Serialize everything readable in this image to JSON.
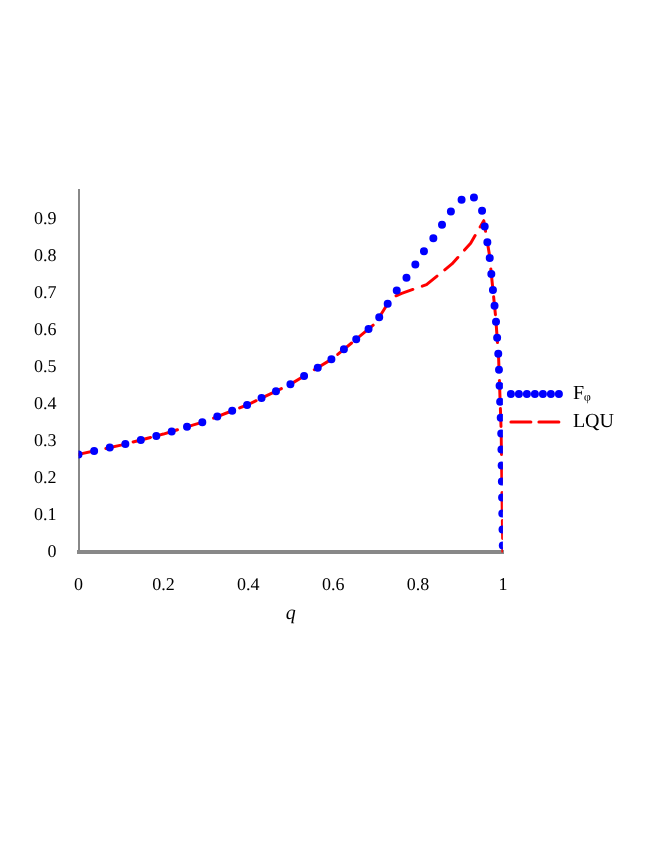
{
  "chart_data": {
    "type": "line",
    "xlabel": "q",
    "xlim": [
      0,
      1
    ],
    "ylim": [
      0,
      0.98
    ],
    "xticks": [
      0,
      0.2,
      0.4,
      0.6,
      0.8,
      1
    ],
    "yticks": [
      0,
      0.1,
      0.2,
      0.3,
      0.4,
      0.5,
      0.6,
      0.7,
      0.8,
      0.9
    ],
    "legend": "right",
    "grid": false,
    "series": [
      {
        "name": "Fᵩ",
        "color": "#0000ff",
        "line_style": "dotted",
        "x": [
          0,
          0.1,
          0.2,
          0.3,
          0.4,
          0.5,
          0.6,
          0.7,
          0.737,
          0.76,
          0.785,
          0.804,
          0.828,
          0.87,
          0.892,
          0.924,
          0.949,
          0.968,
          0.983,
          0.99,
          0.996,
          0.999,
          1
        ],
        "values": [
          0.265,
          0.29,
          0.32,
          0.355,
          0.4,
          0.455,
          0.525,
          0.62,
          0.688,
          0.724,
          0.76,
          0.8,
          0.835,
          0.91,
          0.945,
          0.97,
          0.937,
          0.807,
          0.636,
          0.523,
          0.327,
          0.068,
          0
        ]
      },
      {
        "name": "LQU",
        "color": "#ff0000",
        "line_style": "dashed",
        "x": [
          0,
          0.1,
          0.2,
          0.3,
          0.4,
          0.5,
          0.6,
          0.7,
          0.737,
          0.76,
          0.82,
          0.88,
          0.924,
          0.955,
          0.968,
          0.983,
          0.99,
          0.996,
          0.999,
          1
        ],
        "values": [
          0.265,
          0.29,
          0.32,
          0.355,
          0.4,
          0.455,
          0.525,
          0.62,
          0.688,
          0.7,
          0.724,
          0.78,
          0.836,
          0.897,
          0.807,
          0.636,
          0.523,
          0.327,
          0.068,
          0
        ]
      }
    ]
  }
}
